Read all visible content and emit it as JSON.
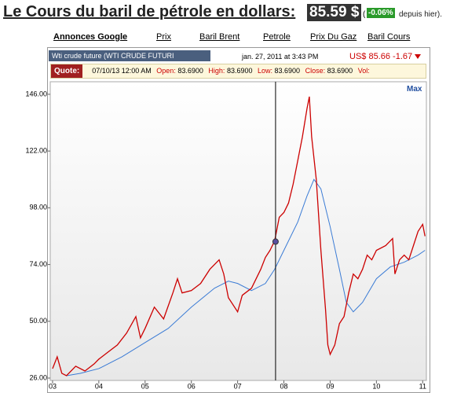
{
  "header": {
    "title": "Le Cours du baril de pétrole en dollars:",
    "price": "85.59 $",
    "open_paren": "(",
    "change": "-0.06%",
    "suffix": "depuis hier)."
  },
  "nav": {
    "ad_label": "Annonces Google",
    "links": [
      "Prix",
      "Baril Brent",
      "Petrole",
      "Prix Du Gaz",
      "Baril Cours"
    ]
  },
  "widget": {
    "tab": "Wti crude future (WTI CRUDE FUTURI",
    "timestamp": "jan. 27, 2011 at 3:43 PM",
    "price": "US$ 85.66 -1.67",
    "quote": {
      "label": "Quote:",
      "date": "07/10/13 12:00 AM",
      "fields": [
        {
          "label": "Open:",
          "value": "83.6900"
        },
        {
          "label": "High:",
          "value": "83.6900"
        },
        {
          "label": "Low:",
          "value": "83.6900"
        },
        {
          "label": "Close:",
          "value": "83.6900"
        }
      ],
      "vol": "Vol:"
    },
    "max": "Max"
  },
  "chart_data": {
    "type": "line",
    "xlim": [
      2002.95,
      2011.08
    ],
    "ylim": [
      25,
      151.3
    ],
    "xticks": [
      {
        "value": 2003,
        "label": "03"
      },
      {
        "value": 2004,
        "label": "04"
      },
      {
        "value": 2005,
        "label": "05"
      },
      {
        "value": 2006,
        "label": "06"
      },
      {
        "value": 2007,
        "label": "07"
      },
      {
        "value": 2008,
        "label": "08"
      },
      {
        "value": 2009,
        "label": "09"
      },
      {
        "value": 2010,
        "label": "10"
      },
      {
        "value": 2011,
        "label": "11"
      }
    ],
    "yticks": [
      {
        "value": 26,
        "label": "26.00"
      },
      {
        "value": 50,
        "label": "50.00"
      },
      {
        "value": 74,
        "label": "74.00"
      },
      {
        "value": 98,
        "label": "98.00"
      },
      {
        "value": 122,
        "label": "122.00"
      },
      {
        "value": 146,
        "label": "146.00"
      }
    ],
    "crosshair": {
      "x": 2007.82,
      "y": 83.69
    },
    "series": [
      {
        "color": "#cc0000",
        "x": [
          2003.0,
          2003.1,
          2003.2,
          2003.3,
          2003.5,
          2003.7,
          2003.9,
          2004.0,
          2004.2,
          2004.4,
          2004.6,
          2004.8,
          2004.9,
          2005.0,
          2005.2,
          2005.4,
          2005.6,
          2005.7,
          2005.8,
          2006.0,
          2006.2,
          2006.4,
          2006.6,
          2006.7,
          2006.8,
          2007.0,
          2007.1,
          2007.3,
          2007.5,
          2007.6,
          2007.7,
          2007.8,
          2007.9,
          2008.0,
          2008.1,
          2008.2,
          2008.3,
          2008.4,
          2008.5,
          2008.55,
          2008.6,
          2008.7,
          2008.8,
          2008.9,
          2008.95,
          2009.0,
          2009.1,
          2009.2,
          2009.3,
          2009.4,
          2009.5,
          2009.6,
          2009.7,
          2009.8,
          2009.9,
          2010.0,
          2010.2,
          2010.35,
          2010.4,
          2010.5,
          2010.6,
          2010.7,
          2010.8,
          2010.9,
          2011.0,
          2011.05
        ],
        "values": [
          30,
          35,
          28,
          27,
          31,
          29,
          32,
          34,
          37,
          40,
          45,
          52,
          43,
          47,
          56,
          51,
          62,
          68,
          62,
          63,
          66,
          72,
          76,
          70,
          60,
          54,
          61,
          64,
          72,
          77,
          80,
          84,
          94,
          96,
          100,
          108,
          118,
          128,
          140,
          145,
          128,
          110,
          80,
          55,
          40,
          36,
          40,
          49,
          52,
          62,
          70,
          68,
          72,
          78,
          76,
          80,
          82,
          85,
          70,
          76,
          78,
          76,
          82,
          88,
          91,
          86
        ]
      },
      {
        "color": "#3a7bd5",
        "x": [
          2003.3,
          2003.6,
          2004.0,
          2004.5,
          2005.0,
          2005.5,
          2006.0,
          2006.5,
          2006.8,
          2007.0,
          2007.3,
          2007.6,
          2007.8,
          2008.0,
          2008.3,
          2008.5,
          2008.65,
          2008.8,
          2009.0,
          2009.2,
          2009.35,
          2009.5,
          2009.7,
          2010.0,
          2010.3,
          2010.6,
          2010.9,
          2011.05
        ],
        "values": [
          27,
          28,
          30,
          35,
          41,
          47,
          56,
          64,
          67,
          66,
          63,
          66,
          72,
          80,
          92,
          103,
          110,
          106,
          90,
          72,
          58,
          54,
          58,
          68,
          73,
          75,
          78,
          80
        ]
      }
    ]
  }
}
